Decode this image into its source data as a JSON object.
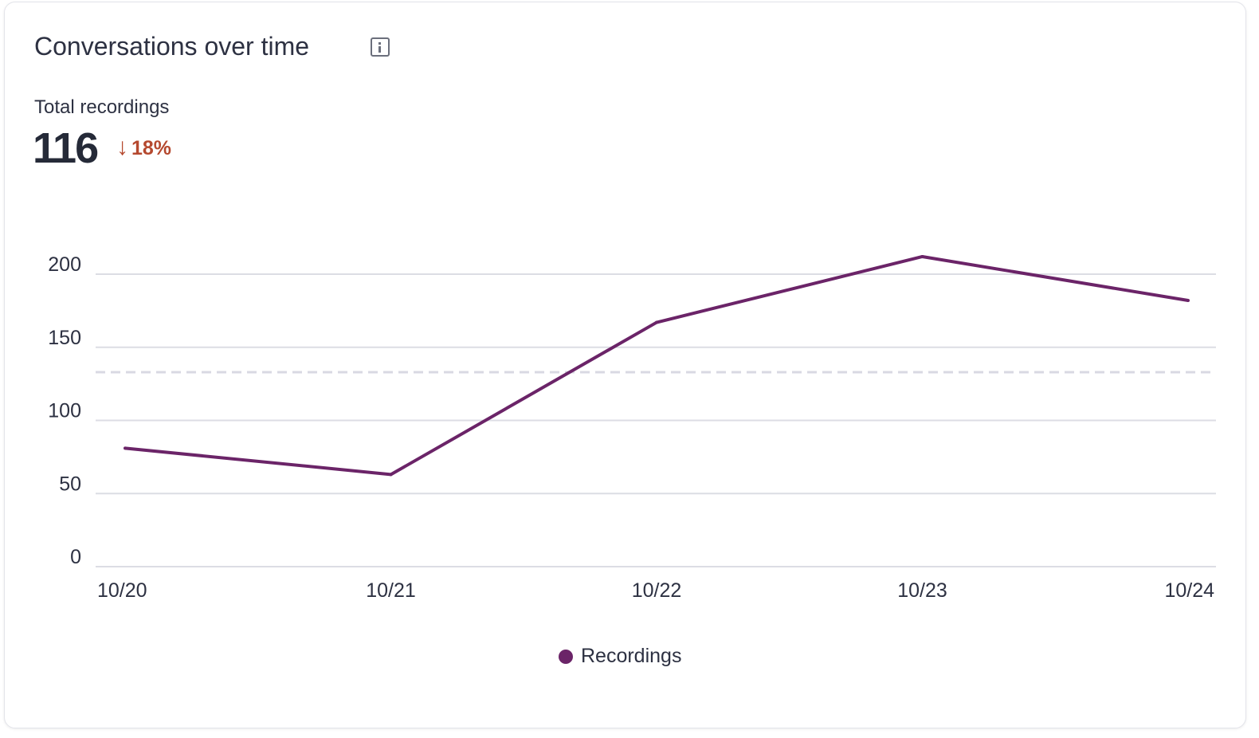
{
  "card": {
    "title": "Conversations over time",
    "info_icon": "info-icon",
    "metric_label": "Total recordings",
    "metric_value": "116",
    "delta": {
      "direction": "down",
      "icon": "arrow-down-icon",
      "value": "18%",
      "color": "#b5492f"
    }
  },
  "chart_data": {
    "type": "line",
    "categories": [
      "10/20",
      "10/21",
      "10/22",
      "10/23",
      "10/24"
    ],
    "series": [
      {
        "name": "Recordings",
        "values": [
          81,
          63,
          167,
          212,
          182
        ],
        "color": "#6b2468"
      }
    ],
    "reference_line": {
      "value": 133,
      "style": "dashed"
    },
    "yticks": [
      0,
      50,
      100,
      150,
      200
    ],
    "ylim": [
      0,
      200
    ],
    "grid": true,
    "legend": "bottom-center"
  }
}
